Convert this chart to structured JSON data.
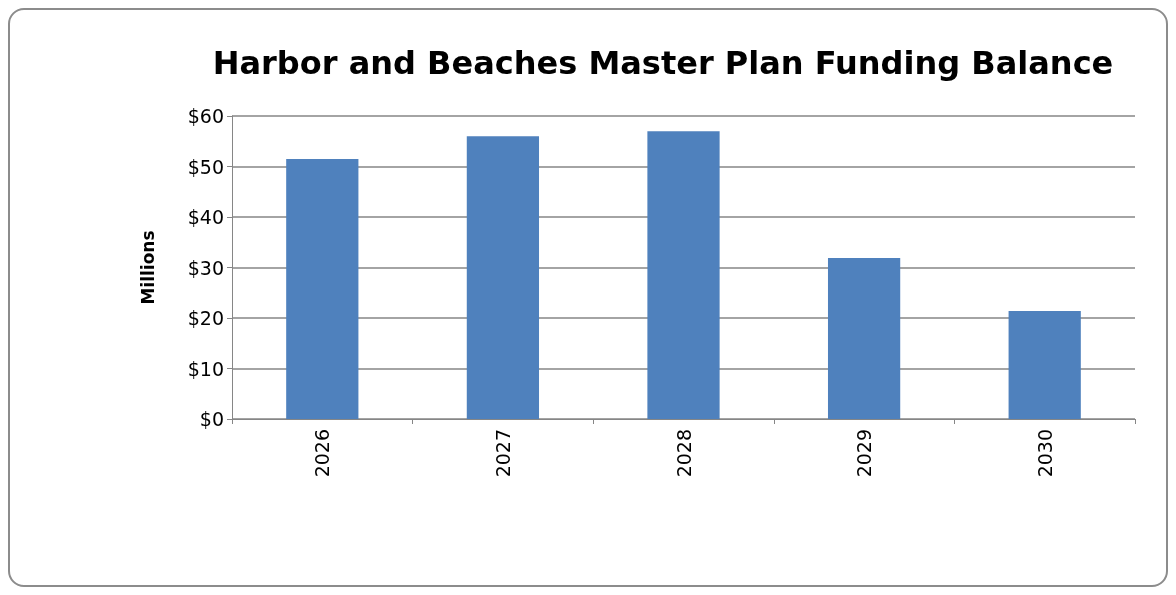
{
  "chart_data": {
    "type": "bar",
    "title": "Harbor and Beaches Master Plan Funding Balance",
    "ylabel": "Millions",
    "categories": [
      "2026",
      "2027",
      "2028",
      "2029",
      "2030"
    ],
    "values": [
      51.5,
      56,
      57,
      31.9,
      21.4
    ],
    "color": "#4f81bd",
    "ylim": [
      0,
      60
    ],
    "yticks": [
      {
        "value": 0,
        "label": "$0"
      },
      {
        "value": 10,
        "label": "$10"
      },
      {
        "value": 20,
        "label": "$20"
      },
      {
        "value": 30,
        "label": "$30"
      },
      {
        "value": 40,
        "label": "$40"
      },
      {
        "value": 50,
        "label": "$50"
      },
      {
        "value": 60,
        "label": "$60"
      }
    ],
    "grid": "y"
  }
}
